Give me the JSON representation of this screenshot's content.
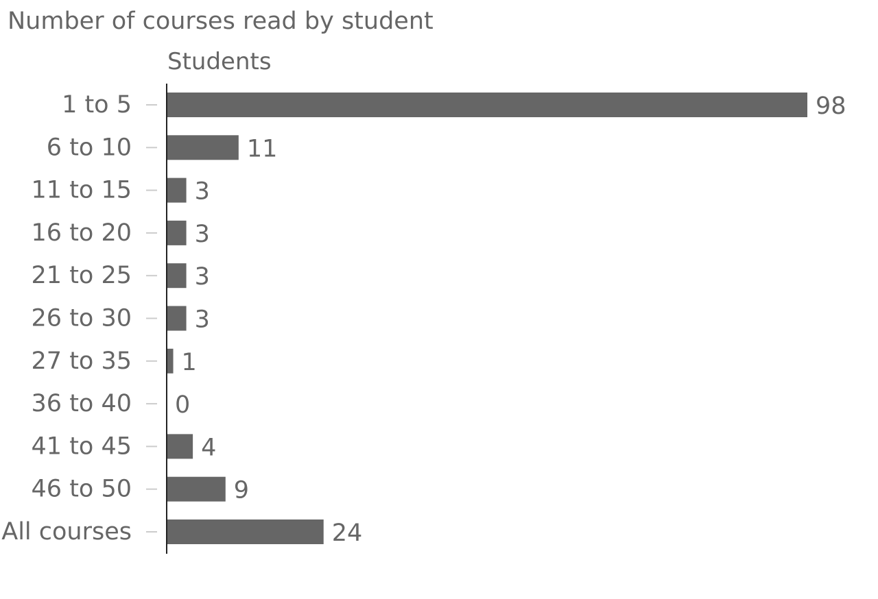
{
  "chart_data": {
    "type": "bar",
    "orientation": "horizontal",
    "title": "Number of courses read by student",
    "xlabel": "Students",
    "ylabel": "",
    "categories": [
      "1 to 5",
      "6 to 10",
      "11 to 15",
      "16 to 20",
      "21 to 25",
      "26 to 30",
      "27 to 35",
      "36 to 40",
      "41 to 45",
      "46 to 50",
      "All courses"
    ],
    "values": [
      98,
      11,
      3,
      3,
      3,
      3,
      1,
      0,
      4,
      9,
      24
    ],
    "xlim": [
      0,
      100
    ],
    "grid": false,
    "legend": "none",
    "bar_color": "#666666",
    "text_color": "#666666",
    "tick_color": "#cccccc",
    "axis_color": "#222222"
  }
}
